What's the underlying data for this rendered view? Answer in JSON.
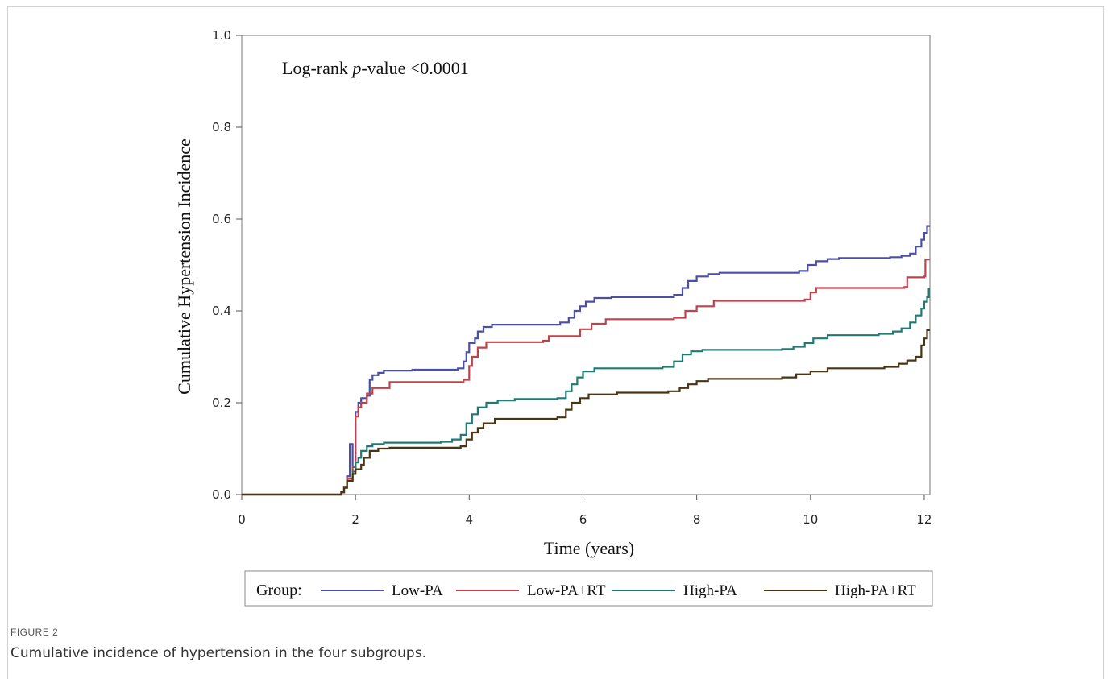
{
  "figure": {
    "label": "FIGURE 2",
    "caption": "Cumulative incidence of hypertension in the four subgroups."
  },
  "chart_data": {
    "type": "line",
    "title": "",
    "annotation_prefix": "Log-rank ",
    "annotation_italic": "p",
    "annotation_suffix": "-value <0.0001",
    "xlabel": "Time (years)",
    "ylabel": "Cumulative Hypertension Incidence",
    "xlim": [
      0,
      12.1
    ],
    "ylim": [
      0,
      1.0
    ],
    "xticks": [
      "0",
      "2",
      "4",
      "6",
      "8",
      "10",
      "12"
    ],
    "yticks": [
      "0.0",
      "0.2",
      "0.4",
      "0.6",
      "0.8",
      "1.0"
    ],
    "grid": false,
    "legend_position": "bottom",
    "legend_title": "Group:",
    "step": true,
    "series": [
      {
        "name": "Low-PA",
        "color": "#4b4fa6",
        "points": [
          [
            0,
            0
          ],
          [
            1.7,
            0
          ],
          [
            1.75,
            0.005
          ],
          [
            1.8,
            0.015
          ],
          [
            1.85,
            0.04
          ],
          [
            1.9,
            0.11
          ],
          [
            1.95,
            0.06
          ],
          [
            2.0,
            0.18
          ],
          [
            2.05,
            0.2
          ],
          [
            2.1,
            0.21
          ],
          [
            2.2,
            0.215
          ],
          [
            2.25,
            0.25
          ],
          [
            2.3,
            0.26
          ],
          [
            2.4,
            0.265
          ],
          [
            2.5,
            0.27
          ],
          [
            3.0,
            0.272
          ],
          [
            3.8,
            0.275
          ],
          [
            3.9,
            0.29
          ],
          [
            3.95,
            0.31
          ],
          [
            4.0,
            0.33
          ],
          [
            4.1,
            0.34
          ],
          [
            4.15,
            0.355
          ],
          [
            4.25,
            0.365
          ],
          [
            4.4,
            0.37
          ],
          [
            5.6,
            0.375
          ],
          [
            5.75,
            0.385
          ],
          [
            5.85,
            0.4
          ],
          [
            5.95,
            0.41
          ],
          [
            6.05,
            0.42
          ],
          [
            6.2,
            0.428
          ],
          [
            6.5,
            0.43
          ],
          [
            7.6,
            0.435
          ],
          [
            7.75,
            0.45
          ],
          [
            7.85,
            0.465
          ],
          [
            8.0,
            0.475
          ],
          [
            8.2,
            0.48
          ],
          [
            8.4,
            0.483
          ],
          [
            9.8,
            0.487
          ],
          [
            9.95,
            0.5
          ],
          [
            10.1,
            0.508
          ],
          [
            10.3,
            0.513
          ],
          [
            10.5,
            0.515
          ],
          [
            11.4,
            0.517
          ],
          [
            11.6,
            0.52
          ],
          [
            11.75,
            0.525
          ],
          [
            11.85,
            0.54
          ],
          [
            11.95,
            0.555
          ],
          [
            12.0,
            0.57
          ],
          [
            12.05,
            0.585
          ],
          [
            12.1,
            0.585
          ]
        ]
      },
      {
        "name": "Low-PA+RT",
        "color": "#c0424a",
        "points": [
          [
            0,
            0
          ],
          [
            1.7,
            0
          ],
          [
            1.75,
            0.005
          ],
          [
            1.8,
            0.015
          ],
          [
            1.85,
            0.035
          ],
          [
            1.95,
            0.06
          ],
          [
            2.0,
            0.17
          ],
          [
            2.05,
            0.19
          ],
          [
            2.1,
            0.2
          ],
          [
            2.2,
            0.22
          ],
          [
            2.3,
            0.232
          ],
          [
            2.6,
            0.245
          ],
          [
            3.9,
            0.25
          ],
          [
            4.0,
            0.28
          ],
          [
            4.05,
            0.3
          ],
          [
            4.15,
            0.32
          ],
          [
            4.3,
            0.332
          ],
          [
            5.3,
            0.335
          ],
          [
            5.4,
            0.345
          ],
          [
            5.95,
            0.36
          ],
          [
            6.15,
            0.372
          ],
          [
            6.4,
            0.382
          ],
          [
            7.6,
            0.385
          ],
          [
            7.8,
            0.4
          ],
          [
            8.0,
            0.41
          ],
          [
            8.3,
            0.422
          ],
          [
            9.9,
            0.425
          ],
          [
            10.0,
            0.44
          ],
          [
            10.1,
            0.45
          ],
          [
            11.65,
            0.452
          ],
          [
            11.7,
            0.473
          ],
          [
            12.0,
            0.475
          ],
          [
            12.02,
            0.512
          ],
          [
            12.1,
            0.512
          ]
        ]
      },
      {
        "name": "High-PA",
        "color": "#1f7a74",
        "points": [
          [
            0,
            0
          ],
          [
            1.7,
            0
          ],
          [
            1.75,
            0.005
          ],
          [
            1.8,
            0.015
          ],
          [
            1.85,
            0.03
          ],
          [
            1.95,
            0.05
          ],
          [
            2.0,
            0.07
          ],
          [
            2.05,
            0.08
          ],
          [
            2.1,
            0.095
          ],
          [
            2.2,
            0.105
          ],
          [
            2.3,
            0.11
          ],
          [
            2.5,
            0.113
          ],
          [
            3.5,
            0.115
          ],
          [
            3.7,
            0.12
          ],
          [
            3.85,
            0.13
          ],
          [
            3.95,
            0.155
          ],
          [
            4.05,
            0.175
          ],
          [
            4.15,
            0.19
          ],
          [
            4.3,
            0.2
          ],
          [
            4.5,
            0.205
          ],
          [
            4.8,
            0.208
          ],
          [
            5.55,
            0.21
          ],
          [
            5.7,
            0.225
          ],
          [
            5.8,
            0.24
          ],
          [
            5.9,
            0.255
          ],
          [
            6.0,
            0.268
          ],
          [
            6.2,
            0.275
          ],
          [
            7.4,
            0.278
          ],
          [
            7.6,
            0.29
          ],
          [
            7.75,
            0.305
          ],
          [
            7.9,
            0.312
          ],
          [
            8.1,
            0.315
          ],
          [
            9.5,
            0.317
          ],
          [
            9.7,
            0.322
          ],
          [
            9.9,
            0.33
          ],
          [
            10.05,
            0.34
          ],
          [
            10.3,
            0.347
          ],
          [
            11.2,
            0.35
          ],
          [
            11.45,
            0.355
          ],
          [
            11.6,
            0.362
          ],
          [
            11.75,
            0.375
          ],
          [
            11.85,
            0.39
          ],
          [
            11.95,
            0.405
          ],
          [
            12.0,
            0.42
          ],
          [
            12.05,
            0.43
          ],
          [
            12.08,
            0.448
          ],
          [
            12.1,
            0.448
          ]
        ]
      },
      {
        "name": "High-PA+RT",
        "color": "#4a3412",
        "points": [
          [
            0,
            0
          ],
          [
            1.7,
            0
          ],
          [
            1.75,
            0.005
          ],
          [
            1.8,
            0.015
          ],
          [
            1.85,
            0.03
          ],
          [
            1.95,
            0.045
          ],
          [
            2.0,
            0.055
          ],
          [
            2.1,
            0.065
          ],
          [
            2.15,
            0.08
          ],
          [
            2.25,
            0.095
          ],
          [
            2.4,
            0.1
          ],
          [
            2.6,
            0.102
          ],
          [
            3.85,
            0.105
          ],
          [
            3.95,
            0.12
          ],
          [
            4.05,
            0.135
          ],
          [
            4.15,
            0.145
          ],
          [
            4.25,
            0.155
          ],
          [
            4.45,
            0.165
          ],
          [
            5.55,
            0.168
          ],
          [
            5.7,
            0.185
          ],
          [
            5.8,
            0.2
          ],
          [
            5.95,
            0.21
          ],
          [
            6.1,
            0.218
          ],
          [
            6.6,
            0.222
          ],
          [
            7.5,
            0.225
          ],
          [
            7.7,
            0.232
          ],
          [
            7.85,
            0.24
          ],
          [
            8.0,
            0.247
          ],
          [
            8.2,
            0.252
          ],
          [
            9.5,
            0.255
          ],
          [
            9.75,
            0.262
          ],
          [
            10.0,
            0.268
          ],
          [
            10.3,
            0.275
          ],
          [
            11.3,
            0.278
          ],
          [
            11.55,
            0.285
          ],
          [
            11.7,
            0.292
          ],
          [
            11.85,
            0.3
          ],
          [
            11.95,
            0.325
          ],
          [
            12.0,
            0.34
          ],
          [
            12.05,
            0.358
          ],
          [
            12.1,
            0.358
          ]
        ]
      }
    ]
  }
}
